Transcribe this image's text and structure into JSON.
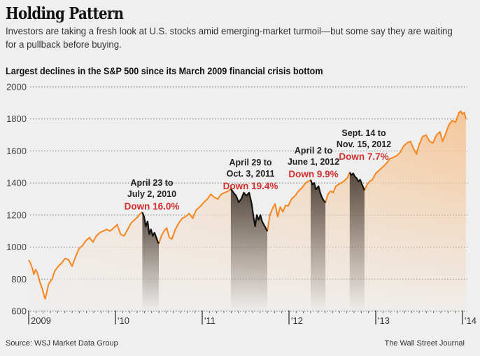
{
  "header": {
    "title": "Holding Pattern",
    "dek": "Investors are taking a fresh look at U.S. stocks amid emerging-market turmoil—but some say they are waiting for a pullback before buying.",
    "subhead": "Largest declines in the S&P 500 since its March 2009 financial crisis bottom"
  },
  "footer": {
    "source": "Source: WSJ Market Data Group",
    "credit": "The Wall Street Journal"
  },
  "colors": {
    "line": "#f7861e",
    "area_top": "#f5c79a",
    "decline_line": "#111111",
    "decline_shade": "#3a3028",
    "red_text": "#d32f2f",
    "grid": "#777777",
    "background": "#efefef"
  },
  "chart_data": {
    "type": "area",
    "title": "Largest declines in the S&P 500 since its March 2009 financial crisis bottom",
    "xlabel": "",
    "ylabel": "",
    "ylim": [
      600,
      2000
    ],
    "xlim": [
      2009.0,
      2014.0
    ],
    "yticks": [
      600,
      800,
      1000,
      1200,
      1400,
      1600,
      1800,
      2000
    ],
    "xticks": [
      {
        "value": 2009.0,
        "label": "2009"
      },
      {
        "value": 2010.0,
        "label": "'10"
      },
      {
        "value": 2011.0,
        "label": "'11"
      },
      {
        "value": 2012.0,
        "label": "'12"
      },
      {
        "value": 2013.0,
        "label": "'13"
      },
      {
        "value": 2014.0,
        "label": "'14"
      }
    ],
    "grid": true,
    "series": [
      {
        "name": "S&P 500",
        "points": [
          [
            2009.0,
            920
          ],
          [
            2009.02,
            900
          ],
          [
            2009.04,
            870
          ],
          [
            2009.06,
            830
          ],
          [
            2009.08,
            860
          ],
          [
            2009.1,
            840
          ],
          [
            2009.13,
            780
          ],
          [
            2009.16,
            735
          ],
          [
            2009.18,
            690
          ],
          [
            2009.19,
            676
          ],
          [
            2009.21,
            720
          ],
          [
            2009.23,
            770
          ],
          [
            2009.27,
            800
          ],
          [
            2009.3,
            850
          ],
          [
            2009.34,
            880
          ],
          [
            2009.38,
            900
          ],
          [
            2009.42,
            930
          ],
          [
            2009.46,
            920
          ],
          [
            2009.5,
            880
          ],
          [
            2009.54,
            940
          ],
          [
            2009.58,
            990
          ],
          [
            2009.62,
            1010
          ],
          [
            2009.66,
            1040
          ],
          [
            2009.7,
            1060
          ],
          [
            2009.74,
            1030
          ],
          [
            2009.78,
            1070
          ],
          [
            2009.82,
            1090
          ],
          [
            2009.86,
            1100
          ],
          [
            2009.9,
            1110
          ],
          [
            2009.94,
            1100
          ],
          [
            2009.98,
            1120
          ],
          [
            2010.02,
            1140
          ],
          [
            2010.06,
            1080
          ],
          [
            2010.1,
            1070
          ],
          [
            2010.14,
            1110
          ],
          [
            2010.18,
            1150
          ],
          [
            2010.22,
            1170
          ],
          [
            2010.26,
            1190
          ],
          [
            2010.28,
            1205
          ],
          [
            2010.31,
            1217
          ],
          [
            2010.33,
            1190
          ],
          [
            2010.35,
            1130
          ],
          [
            2010.37,
            1160
          ],
          [
            2010.39,
            1080
          ],
          [
            2010.41,
            1110
          ],
          [
            2010.43,
            1070
          ],
          [
            2010.45,
            1090
          ],
          [
            2010.47,
            1060
          ],
          [
            2010.49,
            1030
          ],
          [
            2010.5,
            1022
          ],
          [
            2010.53,
            1070
          ],
          [
            2010.56,
            1100
          ],
          [
            2010.59,
            1120
          ],
          [
            2010.62,
            1060
          ],
          [
            2010.65,
            1050
          ],
          [
            2010.69,
            1110
          ],
          [
            2010.73,
            1150
          ],
          [
            2010.77,
            1180
          ],
          [
            2010.81,
            1190
          ],
          [
            2010.85,
            1210
          ],
          [
            2010.89,
            1180
          ],
          [
            2010.93,
            1230
          ],
          [
            2010.97,
            1250
          ],
          [
            2011.02,
            1280
          ],
          [
            2011.06,
            1300
          ],
          [
            2011.1,
            1330
          ],
          [
            2011.14,
            1310
          ],
          [
            2011.18,
            1300
          ],
          [
            2011.22,
            1330
          ],
          [
            2011.26,
            1340
          ],
          [
            2011.3,
            1350
          ],
          [
            2011.33,
            1364
          ],
          [
            2011.36,
            1340
          ],
          [
            2011.39,
            1320
          ],
          [
            2011.42,
            1280
          ],
          [
            2011.45,
            1300
          ],
          [
            2011.48,
            1340
          ],
          [
            2011.51,
            1320
          ],
          [
            2011.54,
            1340
          ],
          [
            2011.57,
            1270
          ],
          [
            2011.59,
            1190
          ],
          [
            2011.61,
            1130
          ],
          [
            2011.63,
            1200
          ],
          [
            2011.65,
            1170
          ],
          [
            2011.67,
            1200
          ],
          [
            2011.69,
            1160
          ],
          [
            2011.71,
            1140
          ],
          [
            2011.73,
            1120
          ],
          [
            2011.75,
            1099
          ],
          [
            2011.78,
            1200
          ],
          [
            2011.81,
            1240
          ],
          [
            2011.84,
            1270
          ],
          [
            2011.87,
            1190
          ],
          [
            2011.9,
            1250
          ],
          [
            2011.93,
            1220
          ],
          [
            2011.96,
            1260
          ],
          [
            2011.99,
            1257
          ],
          [
            2012.03,
            1300
          ],
          [
            2012.07,
            1320
          ],
          [
            2012.11,
            1350
          ],
          [
            2012.15,
            1370
          ],
          [
            2012.19,
            1400
          ],
          [
            2012.22,
            1410
          ],
          [
            2012.25,
            1419
          ],
          [
            2012.27,
            1390
          ],
          [
            2012.29,
            1400
          ],
          [
            2012.31,
            1360
          ],
          [
            2012.34,
            1380
          ],
          [
            2012.36,
            1340
          ],
          [
            2012.38,
            1310
          ],
          [
            2012.4,
            1290
          ],
          [
            2012.42,
            1278
          ],
          [
            2012.45,
            1330
          ],
          [
            2012.48,
            1350
          ],
          [
            2012.51,
            1340
          ],
          [
            2012.54,
            1380
          ],
          [
            2012.57,
            1390
          ],
          [
            2012.6,
            1400
          ],
          [
            2012.63,
            1410
          ],
          [
            2012.67,
            1430
          ],
          [
            2012.7,
            1466
          ],
          [
            2012.72,
            1450
          ],
          [
            2012.74,
            1460
          ],
          [
            2012.76,
            1440
          ],
          [
            2012.78,
            1430
          ],
          [
            2012.8,
            1410
          ],
          [
            2012.82,
            1420
          ],
          [
            2012.85,
            1380
          ],
          [
            2012.87,
            1355
          ],
          [
            2012.9,
            1390
          ],
          [
            2012.93,
            1410
          ],
          [
            2012.96,
            1420
          ],
          [
            2013.0,
            1460
          ],
          [
            2013.04,
            1480
          ],
          [
            2013.08,
            1500
          ],
          [
            2013.12,
            1520
          ],
          [
            2013.16,
            1550
          ],
          [
            2013.2,
            1560
          ],
          [
            2013.24,
            1570
          ],
          [
            2013.28,
            1590
          ],
          [
            2013.32,
            1630
          ],
          [
            2013.36,
            1650
          ],
          [
            2013.4,
            1660
          ],
          [
            2013.44,
            1610
          ],
          [
            2013.47,
            1580
          ],
          [
            2013.5,
            1640
          ],
          [
            2013.54,
            1690
          ],
          [
            2013.58,
            1700
          ],
          [
            2013.62,
            1660
          ],
          [
            2013.66,
            1650
          ],
          [
            2013.7,
            1700
          ],
          [
            2013.74,
            1720
          ],
          [
            2013.77,
            1660
          ],
          [
            2013.8,
            1700
          ],
          [
            2013.84,
            1760
          ],
          [
            2013.88,
            1790
          ],
          [
            2013.92,
            1780
          ],
          [
            2013.96,
            1840
          ],
          [
            2013.98,
            1848
          ],
          [
            2014.0,
            1830
          ],
          [
            2014.02,
            1840
          ],
          [
            2014.04,
            1800
          ]
        ]
      }
    ],
    "declines": [
      {
        "label_line1": "April 23 to",
        "label_line2": "July 2, 2010",
        "change": "Down 16.0%",
        "start": 2010.31,
        "end": 2010.5,
        "peak": 1217,
        "trough": 1022
      },
      {
        "label_line1": "April 29 to",
        "label_line2": "Oct. 3, 2011",
        "change": "Down 19.4%",
        "start": 2011.33,
        "end": 2011.75,
        "peak": 1364,
        "trough": 1099
      },
      {
        "label_line1": "April 2 to",
        "label_line2": "June 1, 2012",
        "change": "Down 9.9%",
        "start": 2012.25,
        "end": 2012.42,
        "peak": 1419,
        "trough": 1278
      },
      {
        "label_line1": "Sept. 14 to",
        "label_line2": "Nov. 15, 2012",
        "change": "Down 7.7%",
        "start": 2012.7,
        "end": 2012.87,
        "peak": 1466,
        "trough": 1355
      }
    ]
  }
}
